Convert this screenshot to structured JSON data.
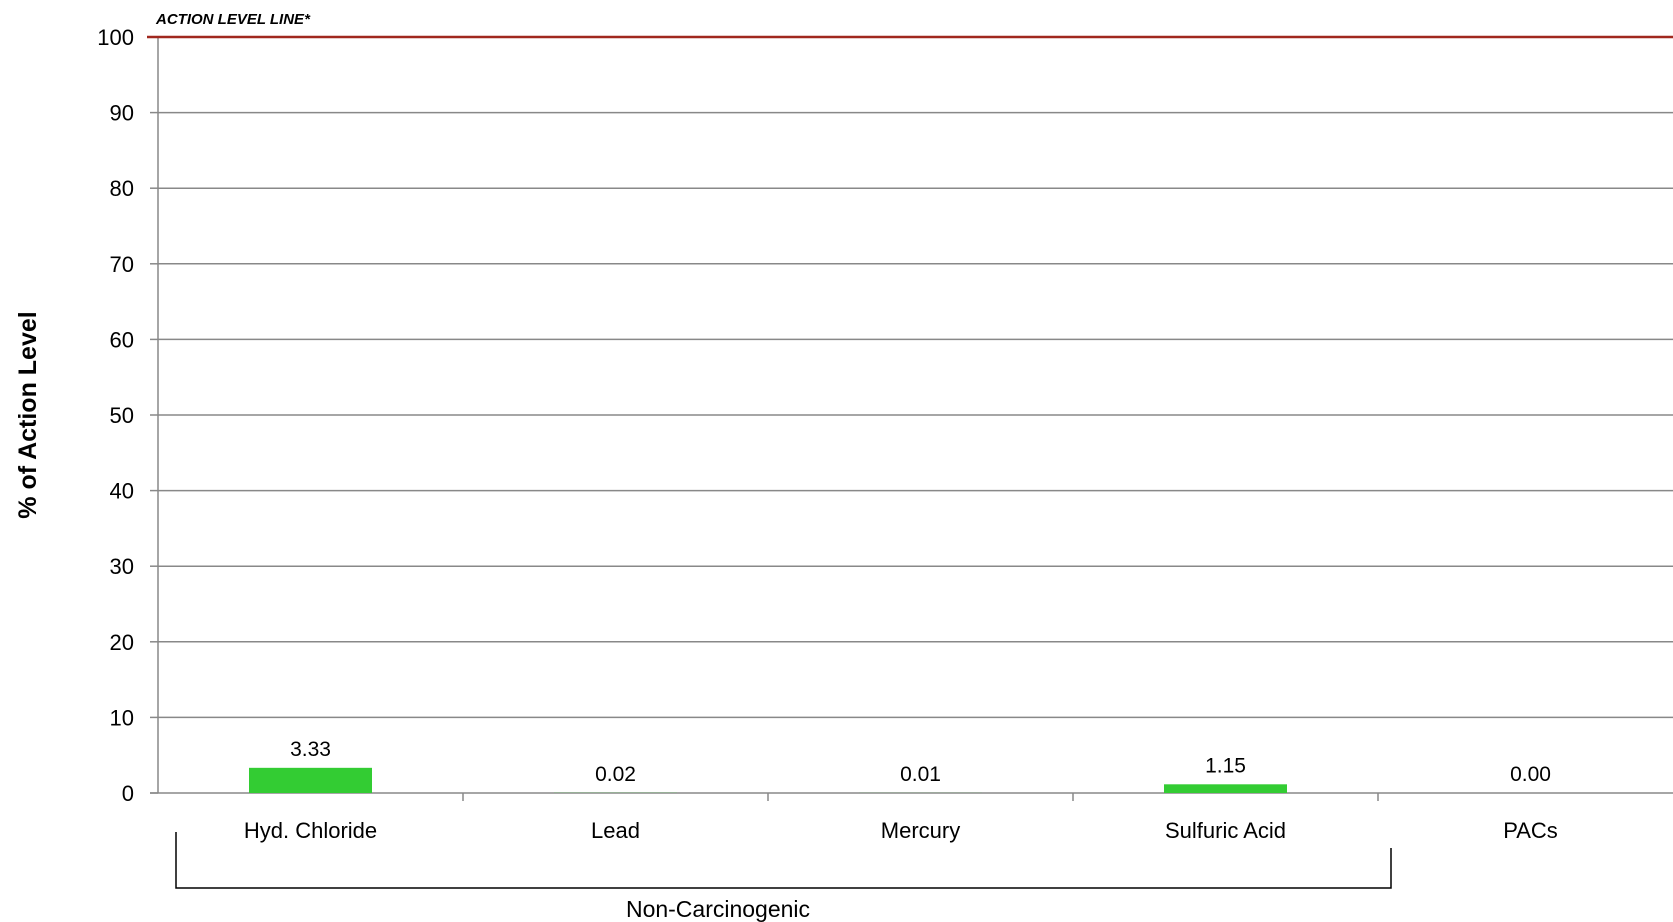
{
  "chart_data": {
    "type": "bar",
    "categories": [
      "Hyd. Chloride",
      "Lead",
      "Mercury",
      "Sulfuric Acid",
      "PACs"
    ],
    "values": [
      3.33,
      0.02,
      0.01,
      1.15,
      0.0
    ],
    "data_labels": [
      "3.33",
      "0.02",
      "0.01",
      "1.15",
      "0.00"
    ],
    "ylabel": "% of Action Level",
    "ylim": [
      0,
      100
    ],
    "yticks": [
      0,
      10,
      20,
      30,
      40,
      50,
      60,
      70,
      80,
      90,
      100
    ],
    "grid": true,
    "bar_color": "#33cc33",
    "action_level": {
      "value": 100,
      "label": "ACTION LEVEL LINE*",
      "color": "#a0281e"
    },
    "groups": [
      {
        "label": "Non-Carcinogenic",
        "categories": [
          "Hyd. Chloride",
          "Lead",
          "Mercury",
          "Sulfuric Acid"
        ]
      }
    ]
  }
}
